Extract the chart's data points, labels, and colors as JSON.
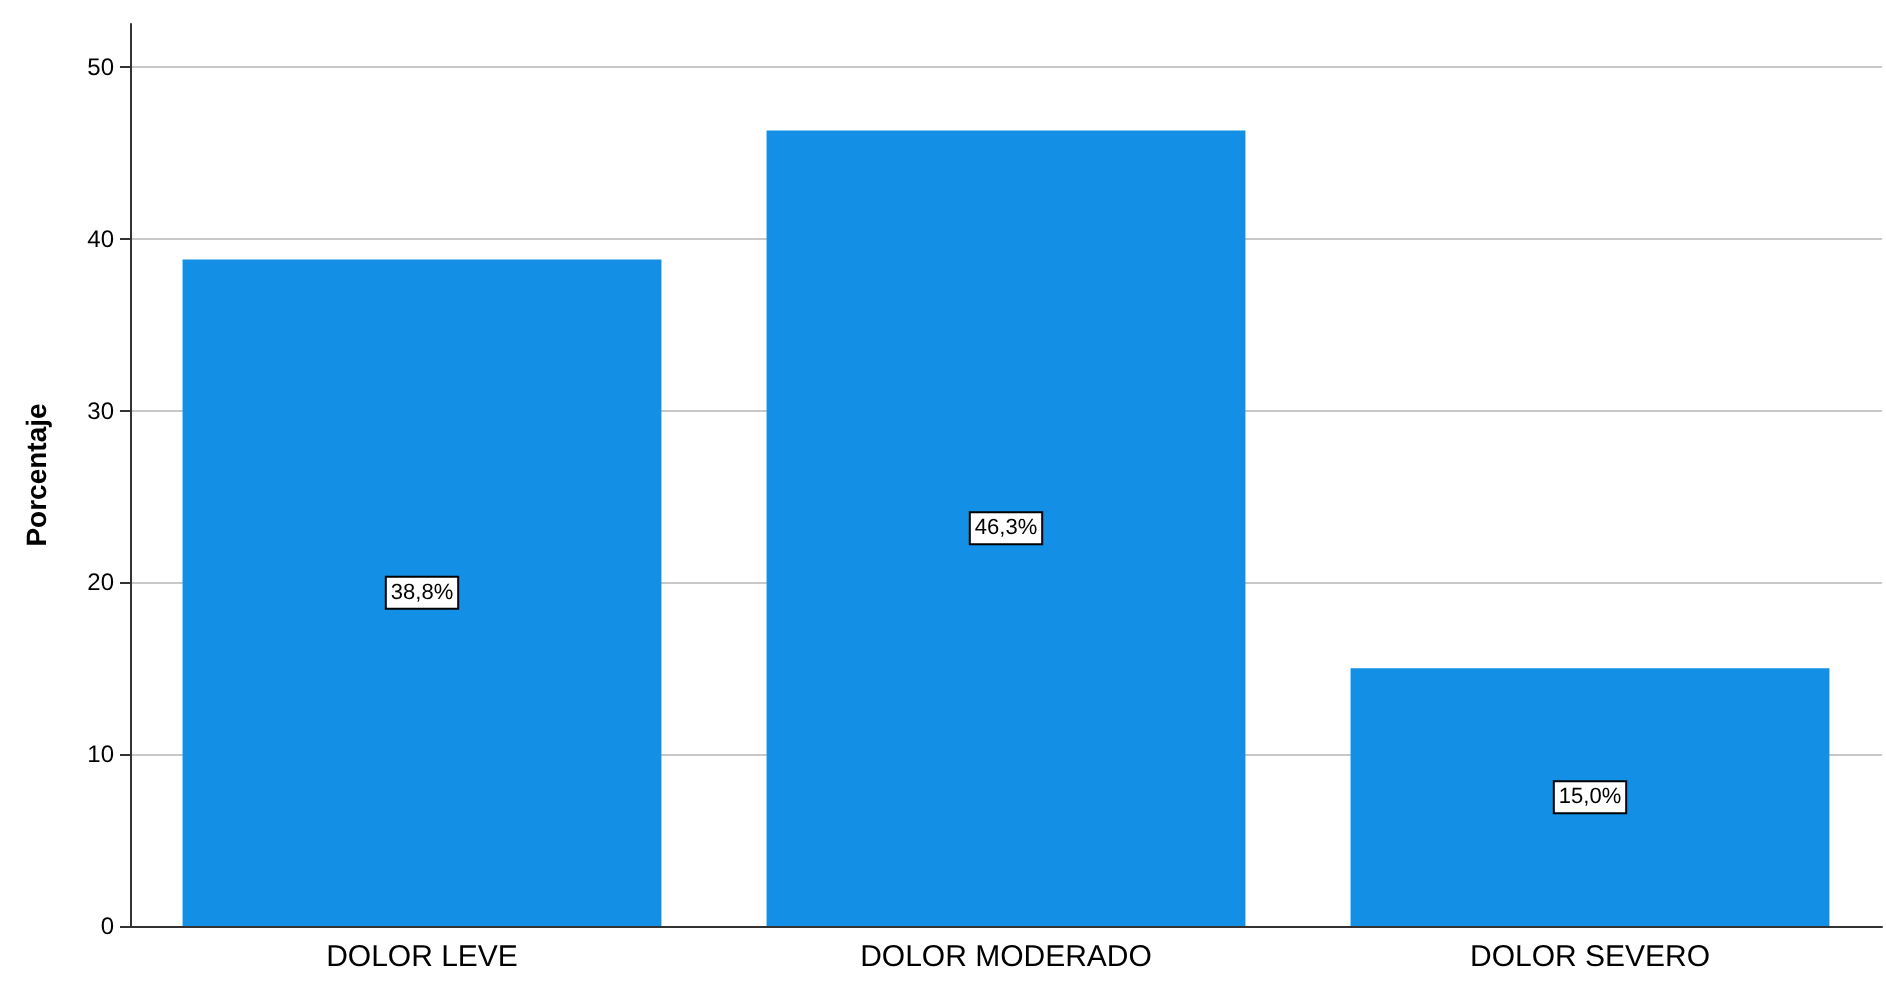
{
  "chart_data": {
    "type": "bar",
    "ylabel": "Porcentaje",
    "categories": [
      "DOLOR LEVE",
      "DOLOR MODERADO",
      "DOLOR SEVERO"
    ],
    "values": [
      38.8,
      46.3,
      15.0
    ],
    "color": "#1390e6",
    "value_labels": [
      "38,8%",
      "46,3%",
      "15,0%"
    ],
    "ylim": [
      0,
      52.5
    ],
    "yticks": [
      0,
      10,
      20,
      30,
      40,
      50
    ],
    "grid": "y"
  }
}
